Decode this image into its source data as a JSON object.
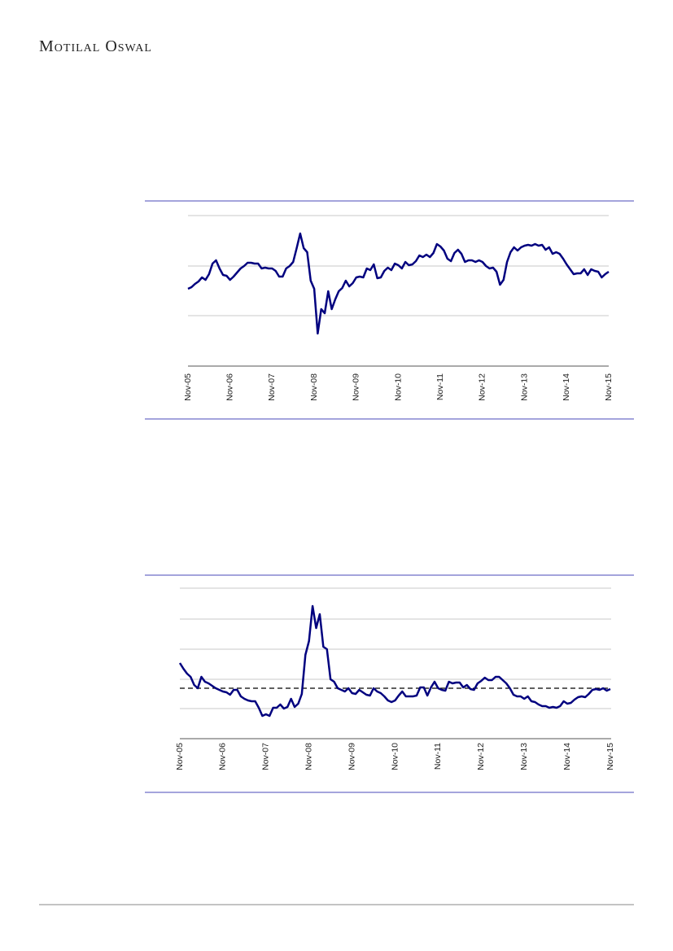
{
  "header": {
    "logo": "Motilal Oswal"
  },
  "chart_data": [
    {
      "type": "line",
      "color": "#00007f",
      "ylim": [
        0,
        185
      ],
      "grid_lines": [
        62,
        123,
        185
      ],
      "categories": [
        "Nov-05",
        null,
        null,
        null,
        null,
        null,
        null,
        null,
        null,
        null,
        null,
        null,
        "Nov-06",
        null,
        null,
        null,
        null,
        null,
        null,
        null,
        null,
        null,
        null,
        null,
        "Nov-07",
        null,
        null,
        null,
        null,
        null,
        null,
        null,
        null,
        null,
        null,
        null,
        "Nov-08",
        null,
        null,
        null,
        null,
        null,
        null,
        null,
        null,
        null,
        null,
        null,
        "Nov-09",
        null,
        null,
        null,
        null,
        null,
        null,
        null,
        null,
        null,
        null,
        null,
        "Nov-10",
        null,
        null,
        null,
        null,
        null,
        null,
        null,
        null,
        null,
        null,
        null,
        "Nov-11",
        null,
        null,
        null,
        null,
        null,
        null,
        null,
        null,
        null,
        null,
        null,
        "Nov-12",
        null,
        null,
        null,
        null,
        null,
        null,
        null,
        null,
        null,
        null,
        null,
        "Nov-13",
        null,
        null,
        null,
        null,
        null,
        null,
        null,
        null,
        null,
        null,
        null,
        "Nov-14",
        null,
        null,
        null,
        null,
        null,
        null,
        null,
        null,
        null,
        null,
        null,
        "Nov-15"
      ],
      "values": [
        95,
        97,
        101,
        104,
        109,
        106,
        113,
        126,
        130,
        120,
        112,
        111,
        106,
        110,
        115,
        120,
        123,
        127,
        127,
        126,
        126,
        120,
        121,
        120,
        120,
        117,
        110,
        110,
        120,
        123,
        128,
        145,
        163,
        145,
        140,
        105,
        95,
        40,
        70,
        65,
        92,
        70,
        82,
        92,
        96,
        105,
        98,
        102,
        109,
        110,
        109,
        120,
        118,
        125,
        108,
        109,
        117,
        121,
        118,
        126,
        124,
        120,
        128,
        124,
        125,
        129,
        136,
        134,
        137,
        134,
        139,
        150,
        147,
        142,
        132,
        129,
        139,
        143,
        138,
        128,
        130,
        130,
        128,
        130,
        128,
        123,
        120,
        121,
        116,
        100,
        106,
        128,
        140,
        146,
        142,
        146,
        148,
        149,
        148,
        150,
        148,
        149,
        143,
        146,
        138,
        140,
        138,
        132,
        125,
        119,
        113,
        114,
        114,
        119,
        112,
        119,
        117,
        116,
        109,
        113,
        116
      ]
    },
    {
      "type": "line",
      "color": "#00007f",
      "ylim": [
        0,
        185
      ],
      "grid_lines": [
        37,
        73,
        110,
        147,
        185
      ],
      "reference_line": 62,
      "categories": [
        "Nov-05",
        null,
        null,
        null,
        null,
        null,
        null,
        null,
        null,
        null,
        null,
        null,
        "Nov-06",
        null,
        null,
        null,
        null,
        null,
        null,
        null,
        null,
        null,
        null,
        null,
        "Nov-07",
        null,
        null,
        null,
        null,
        null,
        null,
        null,
        null,
        null,
        null,
        null,
        "Nov-08",
        null,
        null,
        null,
        null,
        null,
        null,
        null,
        null,
        null,
        null,
        null,
        "Nov-09",
        null,
        null,
        null,
        null,
        null,
        null,
        null,
        null,
        null,
        null,
        null,
        "Nov-10",
        null,
        null,
        null,
        null,
        null,
        null,
        null,
        null,
        null,
        null,
        null,
        "Nov-11",
        null,
        null,
        null,
        null,
        null,
        null,
        null,
        null,
        null,
        null,
        null,
        "Nov-12",
        null,
        null,
        null,
        null,
        null,
        null,
        null,
        null,
        null,
        null,
        null,
        "Nov-13",
        null,
        null,
        null,
        null,
        null,
        null,
        null,
        null,
        null,
        null,
        null,
        "Nov-14",
        null,
        null,
        null,
        null,
        null,
        null,
        null,
        null,
        null,
        null,
        null,
        "Nov-15"
      ],
      "values": [
        93,
        86,
        80,
        76,
        66,
        62,
        76,
        70,
        68,
        65,
        62,
        60,
        58,
        57,
        54,
        60,
        60,
        52,
        49,
        47,
        46,
        46,
        38,
        28,
        30,
        28,
        38,
        38,
        42,
        37,
        39,
        49,
        39,
        43,
        55,
        103,
        120,
        163,
        136,
        153,
        113,
        110,
        73,
        70,
        62,
        60,
        58,
        62,
        56,
        55,
        60,
        57,
        54,
        53,
        62,
        58,
        56,
        52,
        47,
        45,
        47,
        53,
        58,
        52,
        52,
        52,
        53,
        63,
        63,
        53,
        63,
        70,
        62,
        60,
        59,
        70,
        68,
        69,
        69,
        63,
        66,
        61,
        60,
        68,
        71,
        75,
        72,
        72,
        76,
        76,
        72,
        68,
        62,
        54,
        52,
        52,
        49,
        52,
        46,
        45,
        42,
        40,
        40,
        38,
        39,
        38,
        40,
        46,
        43,
        44,
        48,
        51,
        52,
        51,
        55,
        60,
        61,
        60,
        62,
        59,
        61
      ]
    }
  ]
}
